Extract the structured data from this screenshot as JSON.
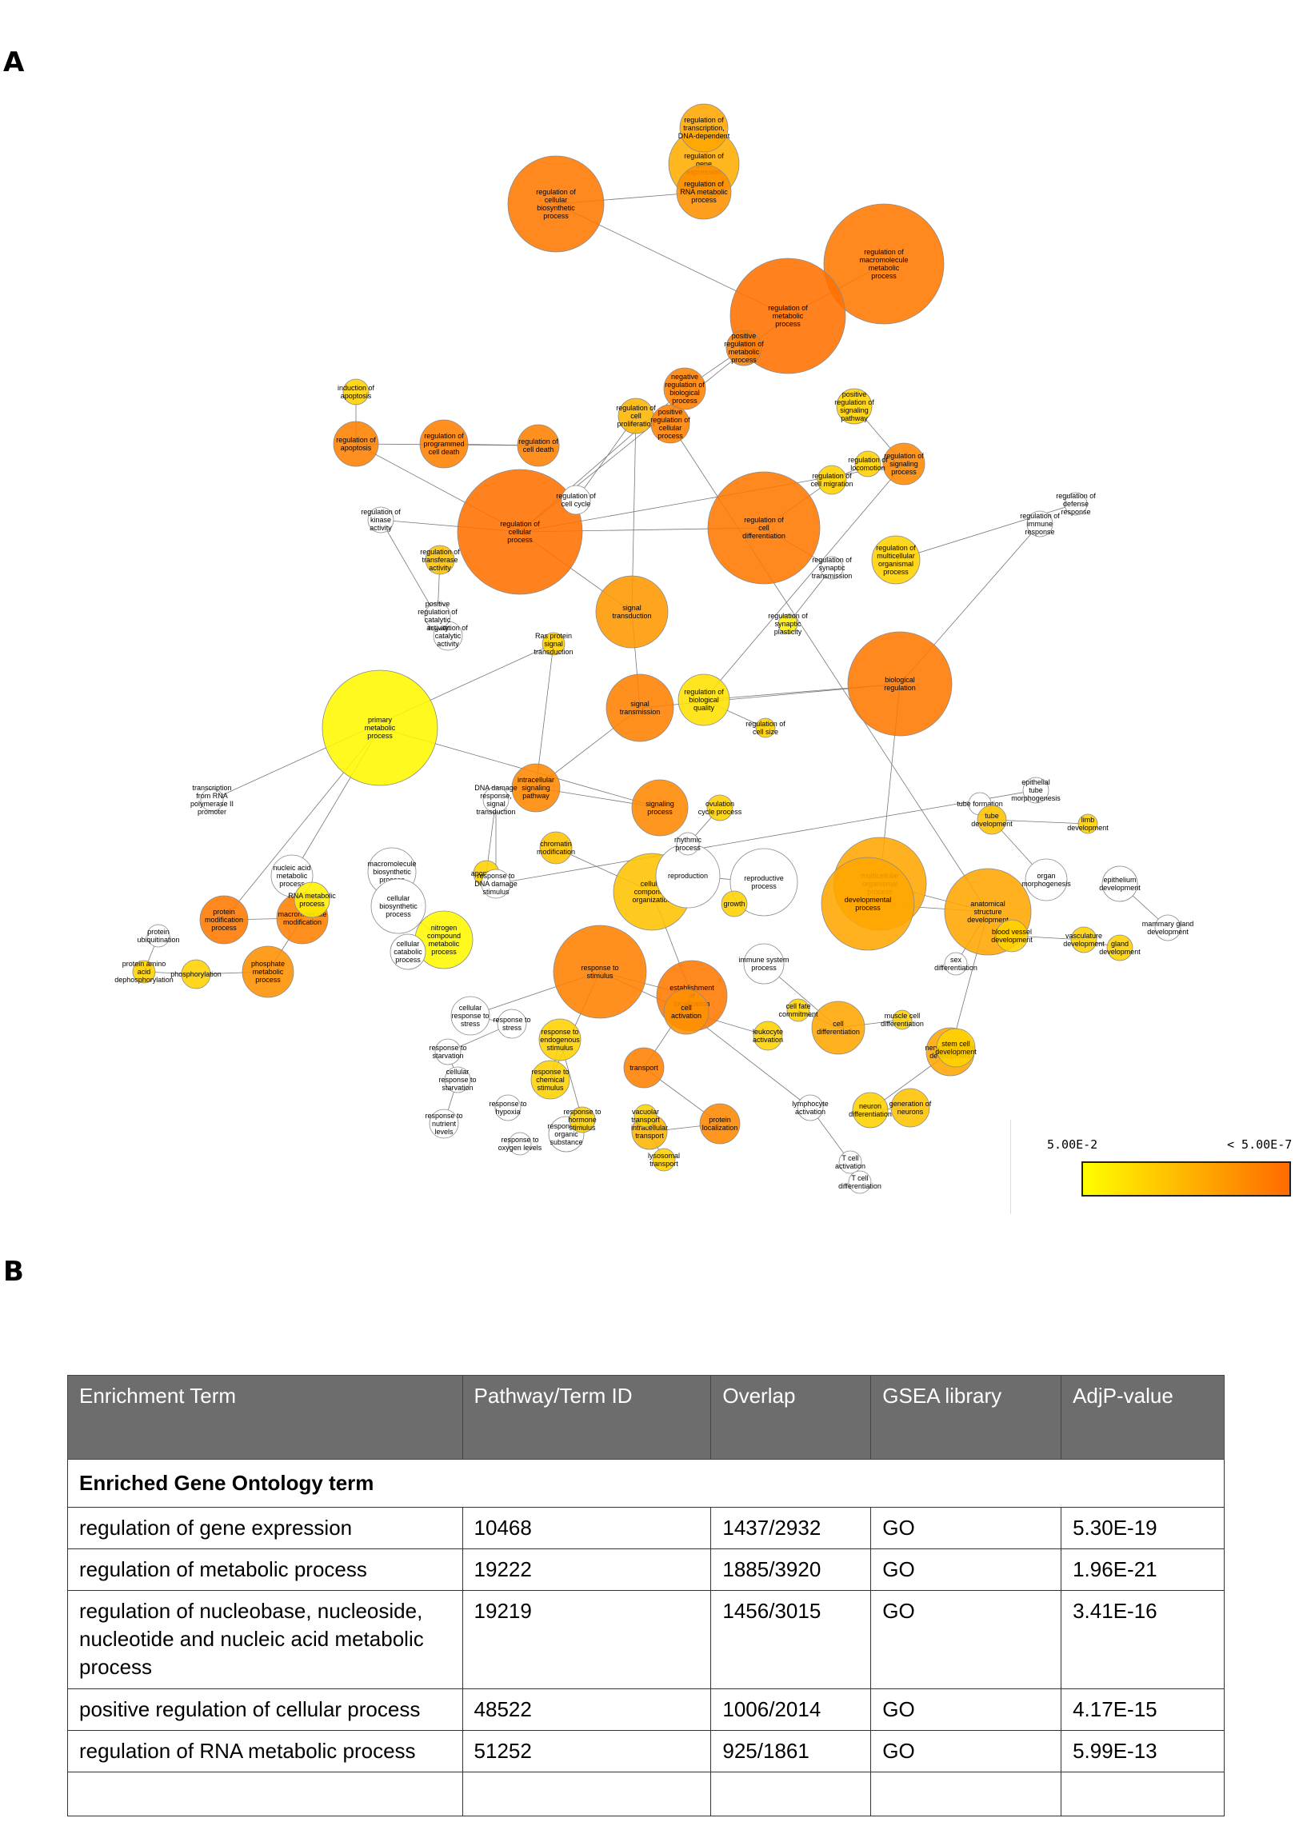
{
  "panels": {
    "a": "A",
    "b": "B"
  },
  "network": {
    "nodes": [
      {
        "label": "regulation of gene expression",
        "p": 0.55
      },
      {
        "label": "regulation of transcription, DNA-dependent",
        "p": 0.6
      },
      {
        "label": "regulation of RNA metabolic process",
        "p": 0.75
      },
      {
        "label": "regulation of cellular biosynthetic process",
        "p": 0.9
      },
      {
        "label": "regulation of macromolecule metabolic process",
        "p": 0.9
      },
      {
        "label": "regulation of metabolic process",
        "p": 0.95
      },
      {
        "label": "regulation of cellular process",
        "p": 0.95
      },
      {
        "label": "regulation of cell differentiation",
        "p": 0.9
      },
      {
        "label": "biological regulation",
        "p": 0.9
      },
      {
        "label": "signal transduction",
        "p": 0.7
      },
      {
        "label": "signal transmission",
        "p": 0.85
      },
      {
        "label": "primary metabolic process",
        "p": 0.05
      },
      {
        "label": "regulation of apoptosis",
        "p": 0.85
      },
      {
        "label": "regulation of cell death",
        "p": 0.85
      },
      {
        "label": "regulation of programmed cell death",
        "p": 0.85
      },
      {
        "label": "regulation of signaling process",
        "p": 0.8
      },
      {
        "label": "regulation of biological quality",
        "p": 0.2
      },
      {
        "label": "intracellular signaling pathway",
        "p": 0.8
      },
      {
        "label": "signaling process",
        "p": 0.8
      },
      {
        "label": "protein modification process",
        "p": 0.9
      },
      {
        "label": "macromolecule modification",
        "p": 0.85
      },
      {
        "label": "phosphate metabolic process",
        "p": 0.75
      },
      {
        "label": "cellular component organization",
        "p": 0.4
      },
      {
        "label": "establishment of localization",
        "p": 0.9
      },
      {
        "label": "response to stimulus",
        "p": 0.85
      },
      {
        "label": "cell activation",
        "p": 0.75
      },
      {
        "label": "cell differentiation",
        "p": 0.6
      },
      {
        "label": "multicellular organismal process",
        "p": 0.6
      },
      {
        "label": "anatomical structure development",
        "p": 0.6
      },
      {
        "label": "nervous system development",
        "p": 0.6
      },
      {
        "label": "immune system process",
        "p": 0.0
      },
      {
        "label": "transport",
        "p": 0.85
      },
      {
        "label": "protein localization",
        "p": 0.8
      },
      {
        "label": "intracellular transport",
        "p": 0.5
      },
      {
        "label": "neuron differentiation",
        "p": 0.3
      },
      {
        "label": "generation of neurons",
        "p": 0.4
      },
      {
        "label": "lymphocyte activation",
        "p": 0.0
      },
      {
        "label": "T cell activation",
        "p": 0.0
      },
      {
        "label": "T cell differentiation",
        "p": 0.0
      },
      {
        "label": "apoptosis",
        "p": 0.3
      },
      {
        "label": "chromatin modification",
        "p": 0.4
      },
      {
        "label": "tube formation",
        "p": 0.0
      },
      {
        "label": "tube development",
        "p": 0.4
      },
      {
        "label": "epithelium development",
        "p": 0.0
      },
      {
        "label": "mammary gland development",
        "p": 0.0
      },
      {
        "label": "gland development",
        "p": 0.3
      },
      {
        "label": "vasculature development",
        "p": 0.3
      },
      {
        "label": "blood vessel development",
        "p": 0.3
      },
      {
        "label": "regulation of kinase activity",
        "p": 0.0
      },
      {
        "label": "regulation of catalytic activity",
        "p": 0.0
      },
      {
        "label": "positive regulation of catalytic activity",
        "p": 0.0
      },
      {
        "label": "regulation of transferase activity",
        "p": 0.4
      },
      {
        "label": "regulation of cell size",
        "p": 0.3
      },
      {
        "label": "regulation of synaptic plasticity",
        "p": 0.1
      },
      {
        "label": "regulation of synaptic transmission",
        "p": 0.0
      },
      {
        "label": "regulation of locomotion",
        "p": 0.3
      },
      {
        "label": "regulation of cell migration",
        "p": 0.3
      },
      {
        "label": "regulation of cell proliferation",
        "p": 0.5
      },
      {
        "label": "regulation of cell cycle",
        "p": 0.0
      },
      {
        "label": "induction of apoptosis",
        "p": 0.3
      },
      {
        "label": "nucleic acid metabolic process",
        "p": 0.0
      },
      {
        "label": "RNA metabolic process",
        "p": 0.1
      },
      {
        "label": "macromolecule biosynthetic process",
        "p": 0.0
      },
      {
        "label": "cellular biosynthetic process",
        "p": 0.0
      },
      {
        "label": "nitrogen compound metabolic process",
        "p": 0.05
      },
      {
        "label": "cellular catabolic process",
        "p": 0.0
      },
      {
        "label": "cellular response to stress",
        "p": 0.0
      },
      {
        "label": "response to stress",
        "p": 0.0
      },
      {
        "label": "response to starvation",
        "p": 0.0
      },
      {
        "label": "cellular response to starvation",
        "p": 0.0
      },
      {
        "label": "response to nutrient levels",
        "p": 0.0
      },
      {
        "label": "response to organic substance",
        "p": 0.0
      },
      {
        "label": "response to oxygen levels",
        "p": 0.0
      },
      {
        "label": "response to hypoxia",
        "p": 0.0
      },
      {
        "label": "response to chemical stimulus",
        "p": 0.3
      },
      {
        "label": "response to endogenous stimulus",
        "p": 0.3
      },
      {
        "label": "response to hormone stimulus",
        "p": 0.3
      },
      {
        "label": "lysosomal transport",
        "p": 0.3
      },
      {
        "label": "vacuolar transport",
        "p": 0.3
      },
      {
        "label": "muscle cell differentiation",
        "p": 0.3
      },
      {
        "label": "leukocyte activation",
        "p": 0.3
      },
      {
        "label": "cell fate commitment",
        "p": 0.3
      },
      {
        "label": "stem cell development",
        "p": 0.3
      },
      {
        "label": "organ morphogenesis",
        "p": 0.0
      },
      {
        "label": "reproduction",
        "p": 0.0
      },
      {
        "label": "reproductive process",
        "p": 0.0
      },
      {
        "label": "growth",
        "p": 0.3
      },
      {
        "label": "ovulation cycle process",
        "p": 0.3
      },
      {
        "label": "rhythmic process",
        "p": 0.0
      },
      {
        "label": "developmental process",
        "p": 0.6
      },
      {
        "label": "positive regulation of signaling pathway",
        "p": 0.3
      },
      {
        "label": "regulation of immune response",
        "p": 0.0
      },
      {
        "label": "regulation of multicellular organismal process",
        "p": 0.3
      },
      {
        "label": "regulation of defense response",
        "p": 0.0
      },
      {
        "label": "protein ubiquitination",
        "p": 0.0
      },
      {
        "label": "protein amino acid dephosphorylation",
        "p": 0.3
      },
      {
        "label": "phosphorylation",
        "p": 0.3
      },
      {
        "label": "transcription from RNA polymerase II promoter",
        "p": 0.0
      },
      {
        "label": "Ras protein signal transduction",
        "p": 0.3
      },
      {
        "label": "DNA damage response, signal transduction",
        "p": 0.0
      },
      {
        "label": "response to DNA damage stimulus",
        "p": 0.0
      },
      {
        "label": "epithelial tube morphogenesis",
        "p": 0.0
      },
      {
        "label": "limb development",
        "p": 0.3
      },
      {
        "label": "sex differentiation",
        "p": 0.0
      },
      {
        "label": "positive regulation of cellular process",
        "p": 0.85
      },
      {
        "label": "negative regulation of biological process",
        "p": 0.85
      },
      {
        "label": "positive regulation of metabolic process",
        "p": 0.85
      }
    ]
  },
  "legend": {
    "low": "5.00E-2",
    "high": "< 5.00E-7",
    "low_color": "#ffff00",
    "high_color": "#ff6a00"
  },
  "table": {
    "headers": [
      "Enrichment Term",
      "Pathway/Term ID",
      "Overlap",
      "GSEA library",
      "AdjP-value"
    ],
    "section": "Enriched Gene Ontology  term",
    "rows": [
      {
        "term": "regulation of gene expression",
        "id": "10468",
        "overlap": "1437/2932",
        "library": "GO",
        "adjp": "5.30E-19"
      },
      {
        "term": "regulation of metabolic process",
        "id": "19222",
        "overlap": "1885/3920",
        "library": "GO",
        "adjp": "1.96E-21"
      },
      {
        "term": "regulation of nucleobase, nucleoside, nucleotide and nucleic acid metabolic process",
        "id": "19219",
        "overlap": "1456/3015",
        "library": "GO",
        "adjp": "3.41E-16"
      },
      {
        "term": "positive regulation of cellular process",
        "id": "48522",
        "overlap": "1006/2014",
        "library": "GO",
        "adjp": "4.17E-15"
      },
      {
        "term": "regulation of RNA metabolic process",
        "id": "51252",
        "overlap": "925/1861",
        "library": "GO",
        "adjp": "5.99E-13"
      }
    ]
  }
}
